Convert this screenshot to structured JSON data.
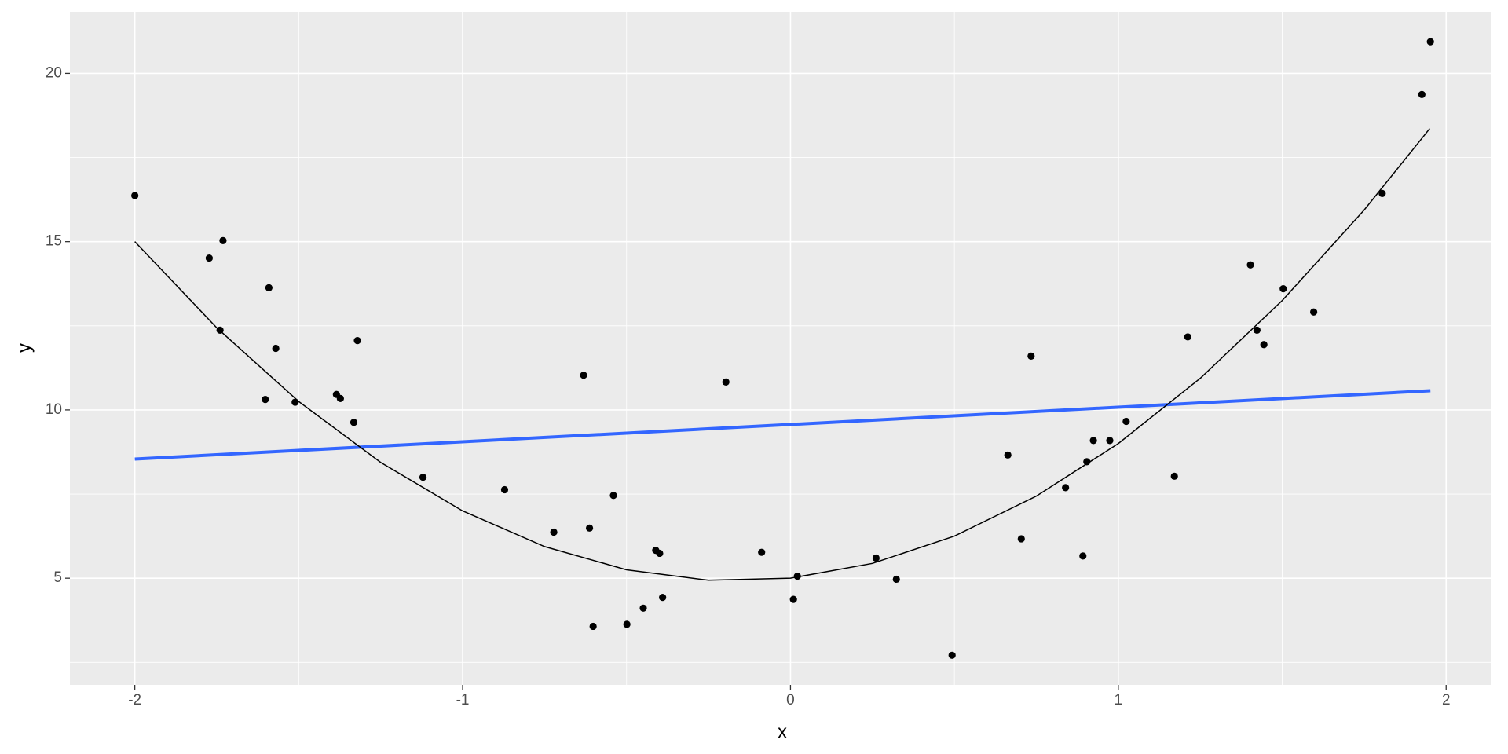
{
  "chart_data": {
    "type": "scatter",
    "x_label": "x",
    "y_label": "y",
    "xlim": [
      -2.198,
      2.136
    ],
    "ylim": [
      1.83,
      21.83
    ],
    "xticks": [
      -2,
      -1,
      0,
      1,
      2
    ],
    "yticks": [
      5,
      10,
      15,
      20
    ],
    "grid": true,
    "series": [
      {
        "type": "scatter",
        "color": "#000000",
        "x": [
          -2.0,
          -1.773,
          -1.731,
          -1.74,
          -1.591,
          -1.57,
          -1.602,
          -1.511,
          -1.385,
          -1.373,
          -1.321,
          -1.332,
          -1.121,
          -0.872,
          -0.722,
          -0.631,
          -0.613,
          -0.602,
          -0.54,
          -0.499,
          -0.449,
          -0.411,
          -0.399,
          -0.39,
          -0.197,
          -0.088,
          0.009,
          0.021,
          0.261,
          0.323,
          0.493,
          0.663,
          0.704,
          0.734,
          0.839,
          0.892,
          0.904,
          0.924,
          0.974,
          1.024,
          1.171,
          1.212,
          1.403,
          1.423,
          1.444,
          1.503,
          1.596,
          1.805,
          1.926,
          1.952
        ],
        "values": [
          16.37,
          14.51,
          15.03,
          12.37,
          13.63,
          11.83,
          10.31,
          10.23,
          10.46,
          10.34,
          12.06,
          9.63,
          8.0,
          7.63,
          6.37,
          11.03,
          6.49,
          3.57,
          7.46,
          3.63,
          4.11,
          5.83,
          5.74,
          4.43,
          10.83,
          5.77,
          4.37,
          5.06,
          5.6,
          4.97,
          2.71,
          8.66,
          6.17,
          11.6,
          7.69,
          5.66,
          8.46,
          9.09,
          9.09,
          9.66,
          8.03,
          12.17,
          14.31,
          12.37,
          11.94,
          13.6,
          12.91,
          16.43,
          19.37,
          20.94
        ]
      },
      {
        "type": "line",
        "color": "#3366ff",
        "x": [
          -2.0,
          1.952
        ],
        "values": [
          8.54,
          10.57
        ]
      },
      {
        "type": "line",
        "color": "#000000",
        "x": [
          -2,
          -1.75,
          -1.5,
          -1.25,
          -1,
          -0.75,
          -0.5,
          -0.25,
          0,
          0.25,
          0.5,
          0.75,
          1,
          1.25,
          1.5,
          1.75,
          1.95
        ],
        "values": [
          15,
          12.44,
          10.25,
          8.44,
          7,
          5.94,
          5.25,
          4.94,
          5,
          5.44,
          6.25,
          7.44,
          9,
          10.94,
          13.25,
          15.94,
          18.36
        ]
      }
    ]
  }
}
